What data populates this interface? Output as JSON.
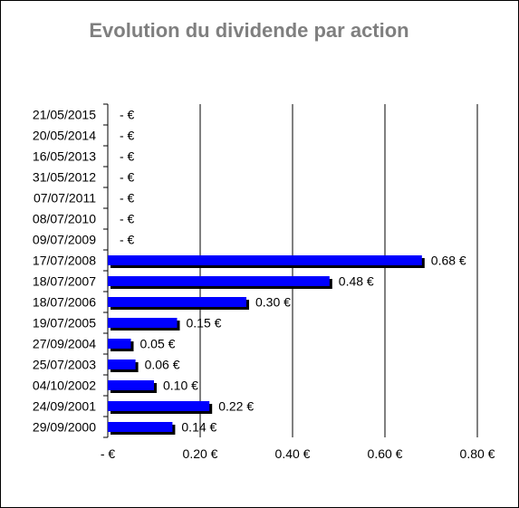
{
  "chart_data": {
    "type": "bar",
    "orientation": "horizontal",
    "title": "Evolution du dividende par action",
    "categories": [
      "21/05/2015",
      "20/05/2014",
      "16/05/2013",
      "31/05/2012",
      "07/07/2011",
      "08/07/2010",
      "09/07/2009",
      "17/07/2008",
      "18/07/2007",
      "18/07/2006",
      "19/07/2005",
      "27/09/2004",
      "25/07/2003",
      "04/10/2002",
      "24/09/2001",
      "29/09/2000"
    ],
    "values": [
      0,
      0,
      0,
      0,
      0,
      0,
      0,
      0.68,
      0.48,
      0.3,
      0.15,
      0.05,
      0.06,
      0.1,
      0.22,
      0.14
    ],
    "data_labels": [
      "-  €",
      "-  €",
      "-  €",
      "-  €",
      "-  €",
      "-  €",
      "-  €",
      "0.68 €",
      "0.48 €",
      "0.30 €",
      "0.15 €",
      "0.05 €",
      "0.06 €",
      "0.10 €",
      "0.22 €",
      "0.14 €"
    ],
    "x_ticks": [
      0,
      0.2,
      0.4,
      0.6,
      0.8
    ],
    "x_tick_labels": [
      "-  €",
      "0.20 €",
      "0.40 €",
      "0.60 €",
      "0.80 €"
    ],
    "xlim": [
      0,
      0.8
    ],
    "xlabel": "",
    "ylabel": "",
    "grid": "vertical",
    "legend": "none",
    "bar_color": "#0000ff",
    "bar_shadow_color": "#000000"
  }
}
